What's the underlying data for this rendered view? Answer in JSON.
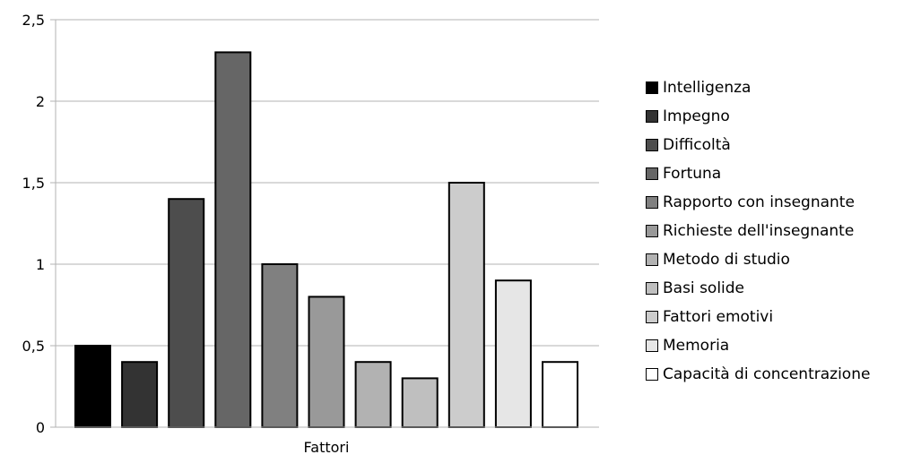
{
  "chart_data": {
    "type": "bar",
    "title": "",
    "xlabel": "Fattori",
    "ylabel": "",
    "ylim": [
      0,
      2.5
    ],
    "yticks": [
      "0",
      "0,5",
      "1",
      "1,5",
      "2",
      "2,5"
    ],
    "grid": true,
    "legend_position": "right",
    "series": [
      {
        "name": "Intelligenza",
        "value": 0.5,
        "color": "#000000"
      },
      {
        "name": "Impegno",
        "value": 0.4,
        "color": "#333333"
      },
      {
        "name": "Difficoltà",
        "value": 1.4,
        "color": "#4d4d4d"
      },
      {
        "name": "Fortuna",
        "value": 2.3,
        "color": "#666666"
      },
      {
        "name": "Rapporto con insegnante",
        "value": 1.0,
        "color": "#808080"
      },
      {
        "name": "Richieste dell'insegnante",
        "value": 0.8,
        "color": "#999999"
      },
      {
        "name": "Metodo di studio",
        "value": 0.4,
        "color": "#b2b2b2"
      },
      {
        "name": "Basi solide",
        "value": 0.3,
        "color": "#bfbfbf"
      },
      {
        "name": "Fattori emotivi",
        "value": 1.5,
        "color": "#cccccc"
      },
      {
        "name": "Memoria",
        "value": 0.9,
        "color": "#e6e6e6"
      },
      {
        "name": "Capacità di concentrazione",
        "value": 0.4,
        "color": "#ffffff"
      }
    ]
  }
}
